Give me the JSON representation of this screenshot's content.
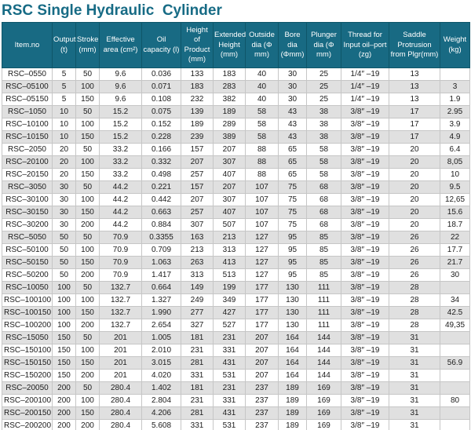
{
  "page_title": "RSC Single Hydraulic  Cylinder",
  "colors": {
    "title_text": "#176b85",
    "header_bg": "#186a83",
    "header_text": "#ffffff",
    "row_alt_bg": "#e0e0e0",
    "grid_line": "#c6c6c6"
  },
  "table": {
    "columns": [
      "Item.no",
      "Output (t)",
      "Stroke (mm)",
      "Effective area (cm²)",
      "Oil capacity (l)",
      "Height of Product (mm)",
      "Extended Height (mm)",
      "Outside dia (Φ mm)",
      "Bore dia (Φmm)",
      "Plunger dia (Φ mm)",
      "Thread for Input oil–port (zg)",
      "Saddle Protrusion from Plgr(mm)",
      "Weight (kg)"
    ],
    "rows": [
      [
        "RSC–0550",
        "5",
        "50",
        "9.6",
        "0.036",
        "133",
        "183",
        "40",
        "30",
        "25",
        "1/4″ –19",
        "13",
        ""
      ],
      [
        "RSC–05100",
        "5",
        "100",
        "9.6",
        "0.071",
        "183",
        "283",
        "40",
        "30",
        "25",
        "1/4″ –19",
        "13",
        "3"
      ],
      [
        "RSC–05150",
        "5",
        "150",
        "9.6",
        "0.108",
        "232",
        "382",
        "40",
        "30",
        "25",
        "1/4″ –19",
        "13",
        "1.9"
      ],
      [
        "RSC–1050",
        "10",
        "50",
        "15.2",
        "0.075",
        "139",
        "189",
        "58",
        "43",
        "38",
        "3/8″ –19",
        "17",
        "2.95"
      ],
      [
        "RSC–10100",
        "10",
        "100",
        "15.2",
        "0.152",
        "189",
        "289",
        "58",
        "43",
        "38",
        "3/8″ –19",
        "17",
        "3.9"
      ],
      [
        "RSC–10150",
        "10",
        "150",
        "15.2",
        "0.228",
        "239",
        "389",
        "58",
        "43",
        "38",
        "3/8″ –19",
        "17",
        "4.9"
      ],
      [
        "RSC–2050",
        "20",
        "50",
        "33.2",
        "0.166",
        "157",
        "207",
        "88",
        "65",
        "58",
        "3/8″ –19",
        "20",
        "6.4"
      ],
      [
        "RSC–20100",
        "20",
        "100",
        "33.2",
        "0.332",
        "207",
        "307",
        "88",
        "65",
        "58",
        "3/8″ –19",
        "20",
        "8,05"
      ],
      [
        "RSC–20150",
        "20",
        "150",
        "33.2",
        "0.498",
        "257",
        "407",
        "88",
        "65",
        "58",
        "3/8″ –19",
        "20",
        "10"
      ],
      [
        "RSC–3050",
        "30",
        "50",
        "44.2",
        "0.221",
        "157",
        "207",
        "107",
        "75",
        "68",
        "3/8″ –19",
        "20",
        "9.5"
      ],
      [
        "RSC–30100",
        "30",
        "100",
        "44.2",
        "0.442",
        "207",
        "307",
        "107",
        "75",
        "68",
        "3/8″ –19",
        "20",
        "12,65"
      ],
      [
        "RSC–30150",
        "30",
        "150",
        "44.2",
        "0.663",
        "257",
        "407",
        "107",
        "75",
        "68",
        "3/8″ –19",
        "20",
        "15.6"
      ],
      [
        "RSC–30200",
        "30",
        "200",
        "44.2",
        "0.884",
        "307",
        "507",
        "107",
        "75",
        "68",
        "3/8″ –19",
        "20",
        "18.7"
      ],
      [
        "RSC–5050",
        "50",
        "50",
        "70.9",
        "0.3355",
        "163",
        "213",
        "127",
        "95",
        "85",
        "3/8″ –19",
        "26",
        "22"
      ],
      [
        "RSC–50100",
        "50",
        "100",
        "70.9",
        "0.709",
        "213",
        "313",
        "127",
        "95",
        "85",
        "3/8″ –19",
        "26",
        "17.7"
      ],
      [
        "RSC–50150",
        "50",
        "150",
        "70.9",
        "1.063",
        "263",
        "413",
        "127",
        "95",
        "85",
        "3/8″ –19",
        "26",
        "21.7"
      ],
      [
        "RSC–50200",
        "50",
        "200",
        "70.9",
        "1.417",
        "313",
        "513",
        "127",
        "95",
        "85",
        "3/8″ –19",
        "26",
        "30"
      ],
      [
        "RSC–10050",
        "100",
        "50",
        "132.7",
        "0.664",
        "149",
        "199",
        "177",
        "130",
        "111",
        "3/8″ –19",
        "28",
        ""
      ],
      [
        "RSC–100100",
        "100",
        "100",
        "132.7",
        "1.327",
        "249",
        "349",
        "177",
        "130",
        "111",
        "3/8″ –19",
        "28",
        "34"
      ],
      [
        "RSC–100150",
        "100",
        "150",
        "132.7",
        "1.990",
        "277",
        "427",
        "177",
        "130",
        "111",
        "3/8″ –19",
        "28",
        "42.5"
      ],
      [
        "RSC–100200",
        "100",
        "200",
        "132.7",
        "2.654",
        "327",
        "527",
        "177",
        "130",
        "111",
        "3/8″ –19",
        "28",
        "49,35"
      ],
      [
        "RSC–15050",
        "150",
        "50",
        "201",
        "1.005",
        "181",
        "231",
        "207",
        "164",
        "144",
        "3/8″ –19",
        "31",
        ""
      ],
      [
        "RSC–150100",
        "150",
        "100",
        "201",
        "2.010",
        "231",
        "331",
        "207",
        "164",
        "144",
        "3/8″ –19",
        "31",
        ""
      ],
      [
        "RSC–150150",
        "150",
        "150",
        "201",
        "3.015",
        "281",
        "431",
        "207",
        "164",
        "144",
        "3/8″ –19",
        "31",
        "56.9"
      ],
      [
        "RSC–150200",
        "150",
        "200",
        "201",
        "4.020",
        "331",
        "531",
        "207",
        "164",
        "144",
        "3/8″ –19",
        "31",
        ""
      ],
      [
        "RSC–20050",
        "200",
        "50",
        "280.4",
        "1.402",
        "181",
        "231",
        "237",
        "189",
        "169",
        "3/8″ –19",
        "31",
        ""
      ],
      [
        "RSC–200100",
        "200",
        "100",
        "280.4",
        "2.804",
        "231",
        "331",
        "237",
        "189",
        "169",
        "3/8″ –19",
        "31",
        "80"
      ],
      [
        "RSC–200150",
        "200",
        "150",
        "280.4",
        "4.206",
        "281",
        "431",
        "237",
        "189",
        "169",
        "3/8″ –19",
        "31",
        ""
      ],
      [
        "RSC–200200",
        "200",
        "200",
        "280.4",
        "5.608",
        "331",
        "531",
        "237",
        "189",
        "169",
        "3/8″ –19",
        "31",
        ""
      ]
    ]
  }
}
